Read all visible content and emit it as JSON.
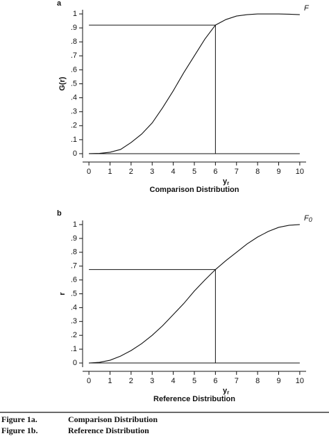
{
  "chart_data": [
    {
      "type": "line",
      "panel": "a",
      "curve_label": "F",
      "ylabel": "G(r)",
      "xlabel": "y",
      "xlabel_sub": "r",
      "subtitle": "Comparison Distribution",
      "x": [
        0,
        0.5,
        1,
        1.5,
        2,
        2.5,
        3,
        3.5,
        4,
        4.5,
        5,
        5.5,
        6,
        6.5,
        7,
        7.5,
        8,
        8.5,
        9,
        9.5,
        10
      ],
      "values": [
        0,
        0.002,
        0.01,
        0.03,
        0.08,
        0.14,
        0.22,
        0.33,
        0.45,
        0.58,
        0.7,
        0.82,
        0.92,
        0.96,
        0.985,
        0.995,
        1,
        1,
        1,
        0.998,
        0.995
      ],
      "marker": {
        "x": 6,
        "y": 0.92
      },
      "xlim": [
        -0.3,
        10.3
      ],
      "ylim": [
        -0.03,
        1.03
      ],
      "xticks": [
        0,
        1,
        2,
        3,
        4,
        5,
        6,
        7,
        8,
        9,
        10
      ],
      "yticks": [
        0,
        {
          "value": 0.1,
          "label": ".1"
        },
        {
          "value": 0.2,
          "label": ".2"
        },
        {
          "value": 0.3,
          "label": ".3"
        },
        {
          "value": 0.4,
          "label": ".4"
        },
        {
          "value": 0.5,
          "label": ".5"
        },
        {
          "value": 0.6,
          "label": ".6"
        },
        {
          "value": 0.7,
          "label": ".7"
        },
        {
          "value": 0.8,
          "label": ".8"
        },
        {
          "value": 0.9,
          "label": ".9"
        },
        1
      ],
      "color": "#111111"
    },
    {
      "type": "line",
      "panel": "b",
      "curve_label": "F",
      "curve_label_sub": "0",
      "ylabel": "r",
      "xlabel": "y",
      "xlabel_sub": "r",
      "subtitle": "Reference Distribution",
      "x": [
        0,
        0.5,
        1,
        1.5,
        2,
        2.5,
        3,
        3.5,
        4,
        4.5,
        5,
        5.5,
        6,
        6.5,
        7,
        7.5,
        8,
        8.5,
        9,
        9.5,
        10
      ],
      "values": [
        0,
        0.005,
        0.02,
        0.05,
        0.09,
        0.14,
        0.2,
        0.27,
        0.35,
        0.43,
        0.52,
        0.6,
        0.675,
        0.74,
        0.8,
        0.86,
        0.91,
        0.95,
        0.98,
        0.995,
        1
      ],
      "marker": {
        "x": 6,
        "y": 0.675
      },
      "xlim": [
        -0.3,
        10.3
      ],
      "ylim": [
        -0.03,
        1.03
      ],
      "xticks": [
        0,
        1,
        2,
        3,
        4,
        5,
        6,
        7,
        8,
        9,
        10
      ],
      "yticks": [
        0,
        {
          "value": 0.1,
          "label": ".1"
        },
        {
          "value": 0.2,
          "label": ".2"
        },
        {
          "value": 0.3,
          "label": ".3"
        },
        {
          "value": 0.4,
          "label": ".4"
        },
        {
          "value": 0.5,
          "label": ".5"
        },
        {
          "value": 0.6,
          "label": ".6"
        },
        {
          "value": 0.7,
          "label": ".7"
        },
        {
          "value": 0.8,
          "label": ".8"
        },
        {
          "value": 0.9,
          "label": ".9"
        },
        1
      ],
      "color": "#111111"
    }
  ],
  "captions": [
    {
      "label": "Figure 1a.",
      "text": "Comparison Distribution"
    },
    {
      "label": "Figure 1b.",
      "text": "Reference Distribution"
    }
  ]
}
